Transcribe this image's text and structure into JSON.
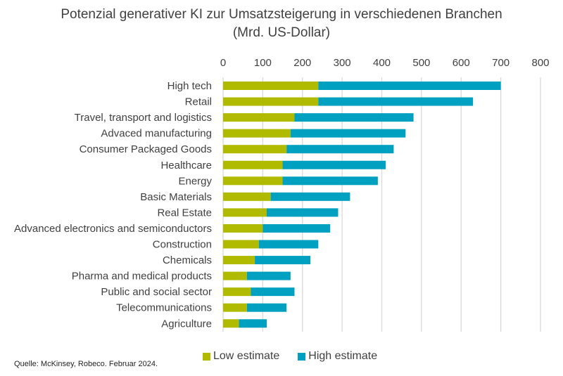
{
  "chart_data": {
    "type": "bar",
    "orientation": "horizontal",
    "stacked": true,
    "title": "Potenzial generativer KI zur Umsatzsteigerung in verschiedenen Branchen",
    "subtitle": "(Mrd. US-Dollar)",
    "xlabel": "",
    "ylabel": "",
    "xlim": [
      0,
      800
    ],
    "xticks": [
      "0",
      "100",
      "200",
      "300",
      "400",
      "500",
      "600",
      "700",
      "800"
    ],
    "grid": true,
    "legend_position": "bottom",
    "categories": [
      "High tech",
      "Retail",
      "Travel, transport and logistics",
      "Advaced manufacturing",
      "Consumer Packaged Goods",
      "Healthcare",
      "Energy",
      "Basic Materials",
      "Real Estate",
      "Advanced electronics and semiconductors",
      "Construction",
      "Chemicals",
      "Pharma and medical products",
      "Public and social sector",
      "Telecommunications",
      "Agriculture"
    ],
    "series": [
      {
        "name": "Low estimate",
        "color": "#b0bb00",
        "values": [
          240,
          240,
          180,
          170,
          160,
          150,
          150,
          120,
          110,
          100,
          90,
          80,
          60,
          70,
          60,
          40
        ]
      },
      {
        "name": "High estimate",
        "color": "#00a0c0",
        "values": [
          700,
          630,
          480,
          460,
          430,
          410,
          390,
          320,
          290,
          270,
          240,
          220,
          170,
          180,
          160,
          110
        ]
      }
    ],
    "note": "High estimate bar segment extends from the low estimate to the high estimate value"
  },
  "source": "Quelle: McKinsey, Robeco. Februar 2024."
}
